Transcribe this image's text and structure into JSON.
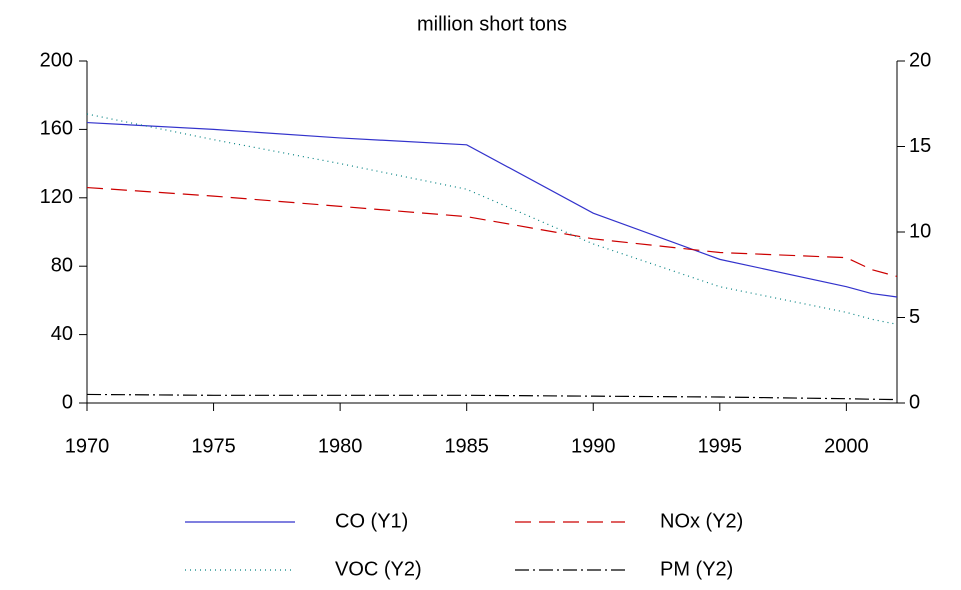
{
  "chart_data": {
    "type": "line",
    "title": "million short tons",
    "x": [
      1970,
      1975,
      1980,
      1985,
      1990,
      1995,
      2000,
      2001,
      2002
    ],
    "xlim": [
      1970,
      2002
    ],
    "xticks": [
      1970,
      1975,
      1980,
      1985,
      1990,
      1995,
      2000
    ],
    "ylim": [
      0,
      200
    ],
    "yticks": [
      0,
      40,
      80,
      120,
      160,
      200
    ],
    "y2lim": [
      0,
      20
    ],
    "y2ticks": [
      0,
      5,
      10,
      15,
      20
    ],
    "series": [
      {
        "name": "CO (Y1)",
        "color": "#3333cc",
        "dash": "none",
        "values": [
          164,
          160,
          155,
          151,
          111,
          84,
          68,
          64,
          62
        ]
      },
      {
        "name": "NOx (Y2)",
        "color": "#cc0000",
        "dash": "16 8",
        "axis": "y2",
        "values": [
          12.6,
          12.1,
          11.5,
          10.9,
          9.6,
          8.8,
          8.5,
          7.8,
          7.4
        ]
      },
      {
        "name": "VOC (Y2)",
        "color": "#008080",
        "dash": "1 4",
        "axis": "y2",
        "values": [
          16.9,
          15.4,
          14.0,
          12.5,
          9.3,
          6.8,
          5.3,
          4.9,
          4.6
        ]
      },
      {
        "name": "PM (Y2)",
        "color": "#000000",
        "dash": "14 4 2 4",
        "axis": "y2",
        "values": [
          0.5,
          0.45,
          0.45,
          0.45,
          0.4,
          0.35,
          0.25,
          0.22,
          0.2
        ]
      }
    ]
  }
}
